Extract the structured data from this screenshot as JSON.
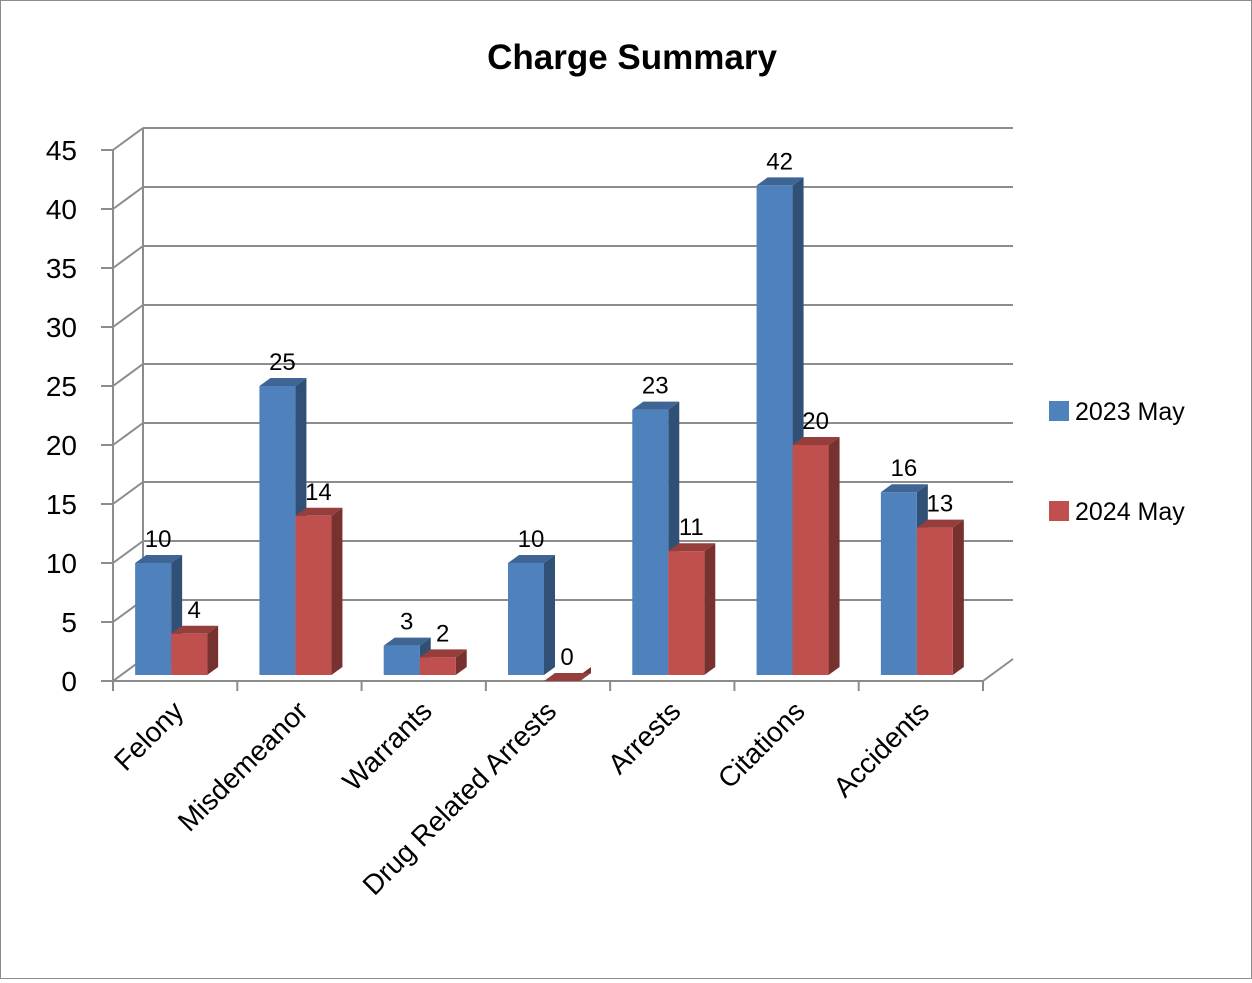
{
  "chart_data": {
    "type": "bar",
    "title": "Charge Summary",
    "categories": [
      "Felony",
      "Misdemeanor",
      "Warrants",
      "Drug Related Arrests",
      "Arrests",
      "Citations",
      "Accidents"
    ],
    "series": [
      {
        "name": "2023 May",
        "values": [
          10,
          25,
          3,
          10,
          23,
          42,
          16
        ],
        "color": "#4F81BD"
      },
      {
        "name": "2024 May",
        "values": [
          4,
          14,
          2,
          0,
          11,
          20,
          13
        ],
        "color": "#C0504D"
      }
    ],
    "ylim": [
      0,
      45
    ],
    "yticks": [
      0,
      5,
      10,
      15,
      20,
      25,
      30,
      35,
      40,
      45
    ],
    "grid": true,
    "legend": "right",
    "style": "3d-clustered-column"
  }
}
